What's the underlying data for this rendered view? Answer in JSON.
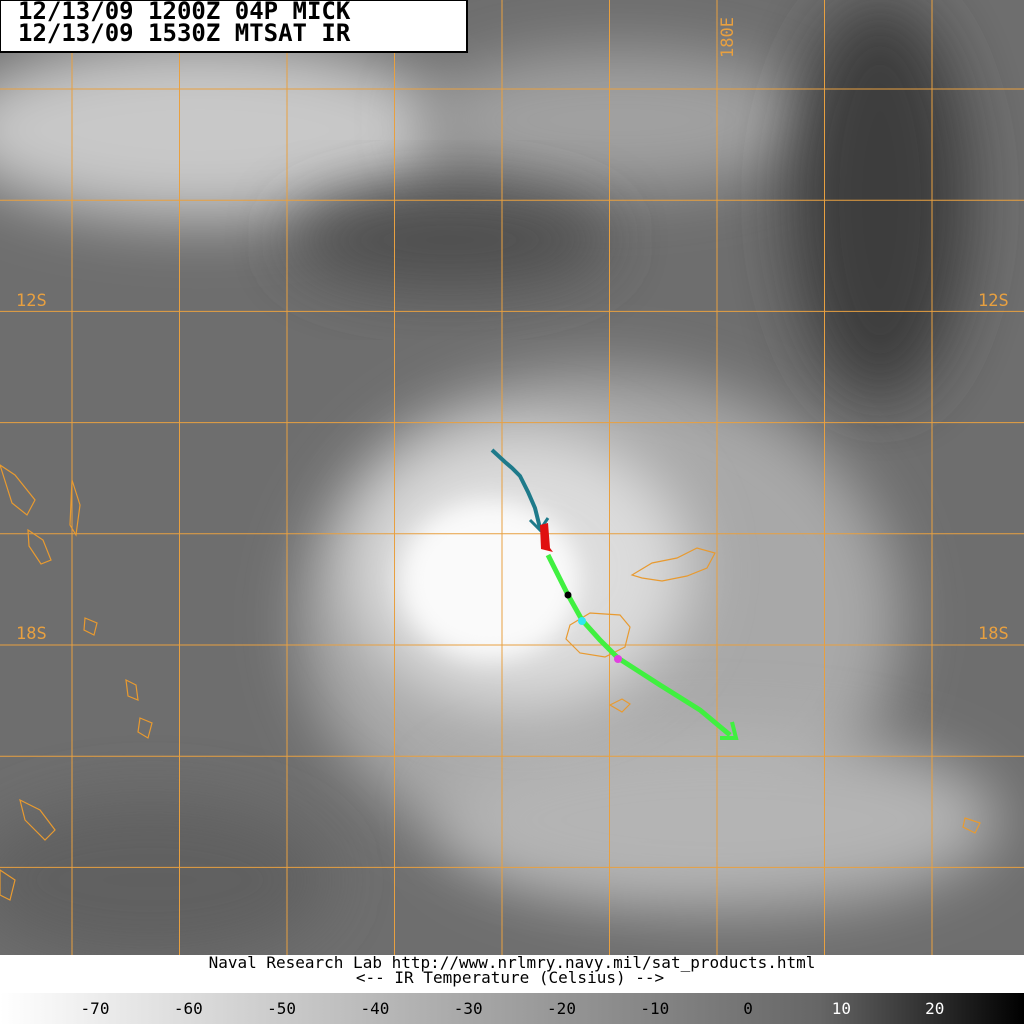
{
  "header": {
    "lines": [
      "12/13/09 1200Z  04P MICK",
      "12/13/09 1530Z  MTSAT IR"
    ]
  },
  "map": {
    "labels": [
      "12S",
      "18S",
      "180E"
    ]
  },
  "footer": {
    "credit": "Naval Research Lab http://www.nrlmry.navy.mil/sat_products.html",
    "scale_title": "<--   IR Temperature (Celsius)   -->"
  },
  "colorbar": {
    "ticks": [
      "-70",
      "-60",
      "-50",
      "-40",
      "-30",
      "-20",
      "-10",
      "0",
      "10",
      "20"
    ]
  }
}
